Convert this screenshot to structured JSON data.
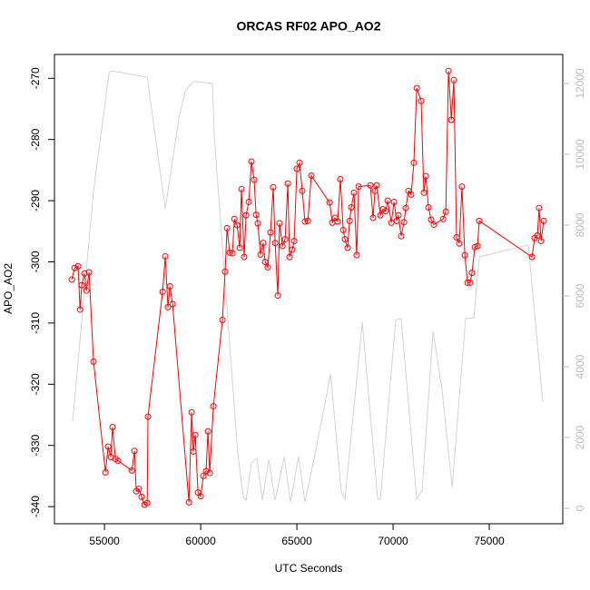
{
  "chart_data": {
    "type": "line",
    "title": "ORCAS RF02 APO_AO2",
    "xlabel": "UTC Seconds",
    "ylabel": "APO_AO2",
    "xlim": [
      52400,
      78820
    ],
    "xticks": [
      55000,
      60000,
      65000,
      70000,
      75000
    ],
    "ylim": [
      -342.8,
      -266.1
    ],
    "yticks": [
      -340,
      -330,
      -320,
      -310,
      -300,
      -290,
      -280,
      -270
    ],
    "y2lim": [
      -436,
      12820
    ],
    "y2ticks": [
      0,
      2000,
      4000,
      6000,
      8000,
      10000,
      12000
    ],
    "series": [
      {
        "color": "#d3d3d3",
        "axis": "y2",
        "markers": false,
        "x": [
          53350,
          54430,
          55240,
          55330,
          57220,
          58160,
          58870,
          59200,
          59620,
          59910,
          60610,
          60710,
          61370,
          61930,
          62220,
          62360,
          62640,
          62920,
          63210,
          63540,
          63870,
          64340,
          64670,
          65090,
          65420,
          65900,
          66750,
          67310,
          67500,
          68400,
          69200,
          69340,
          70140,
          70420,
          71230,
          71510,
          72080,
          72550,
          73070,
          73770,
          74200,
          74480,
          77030,
          77780
        ],
        "values": [
          2460,
          8970,
          12300,
          12360,
          12180,
          8460,
          11030,
          11800,
          12050,
          12050,
          12000,
          10510,
          5640,
          1540,
          310,
          230,
          1280,
          1410,
          230,
          1380,
          230,
          1460,
          180,
          1460,
          180,
          1410,
          3790,
          460,
          260,
          5260,
          260,
          260,
          5330,
          5360,
          260,
          510,
          5000,
          3330,
          590,
          5360,
          5380,
          7100,
          7440,
          3000
        ]
      },
      {
        "color": "#ff0000",
        "axis": "y",
        "markers": true,
        "x": [
          53300,
          53450,
          53630,
          53730,
          53820,
          53960,
          54060,
          54200,
          54430,
          55050,
          55190,
          55330,
          55420,
          55570,
          55710,
          56420,
          56560,
          56650,
          56790,
          56930,
          57080,
          57220,
          57260,
          58020,
          58160,
          58300,
          58400,
          58540,
          59390,
          59530,
          59620,
          59720,
          59860,
          60000,
          60140,
          60280,
          60380,
          60470,
          60660,
          61130,
          61270,
          61370,
          61510,
          61650,
          61750,
          61890,
          62030,
          62120,
          62260,
          62360,
          62500,
          62640,
          62780,
          62880,
          62970,
          63110,
          63250,
          63350,
          63490,
          63630,
          63770,
          63870,
          64010,
          64100,
          64250,
          64390,
          64530,
          64620,
          64760,
          64860,
          65000,
          65140,
          65280,
          65420,
          65570,
          65750,
          66700,
          66840,
          66980,
          67120,
          67260,
          67410,
          67500,
          67640,
          67740,
          67830,
          67970,
          68110,
          68210,
          68820,
          68960,
          69060,
          69150,
          69340,
          69480,
          69620,
          69720,
          69910,
          70050,
          70190,
          70280,
          70420,
          70570,
          70660,
          70800,
          70940,
          71080,
          71230,
          71460,
          71600,
          71700,
          71840,
          71980,
          72120,
          72600,
          72740,
          72880,
          73030,
          73160,
          73300,
          73440,
          73580,
          73730,
          73870,
          74010,
          74100,
          74250,
          74390,
          74480,
          77220,
          77360,
          77500,
          77590,
          77690,
          77830
        ],
        "values": [
          -302.9,
          -301,
          -300.7,
          -307.8,
          -303.8,
          -301.9,
          -304.7,
          -301.7,
          -316.3,
          -334.4,
          -330.2,
          -331.9,
          -327,
          -332.2,
          -332.5,
          -334.1,
          -330.9,
          -337.5,
          -337.1,
          -338.4,
          -339.7,
          -339.4,
          -325.3,
          -304.9,
          -299.1,
          -307.4,
          -304,
          -306.9,
          -339.3,
          -324.6,
          -331,
          -328.3,
          -337.7,
          -338.3,
          -335,
          -334.2,
          -327.7,
          -334.5,
          -323.6,
          -309.5,
          -301.6,
          -294.5,
          -298.5,
          -298.6,
          -293,
          -294,
          -297.7,
          -288.1,
          -299.2,
          -292.4,
          -290.2,
          -283.6,
          -286.6,
          -292.3,
          -293.7,
          -298.8,
          -296.9,
          -300,
          -300.9,
          -295.2,
          -287.8,
          -296.9,
          -305.5,
          -293.7,
          -297.4,
          -296.3,
          -287.2,
          -299.2,
          -298,
          -296.6,
          -284.8,
          -283.8,
          -288.4,
          -293.4,
          -293.3,
          -285.9,
          -290.3,
          -293.6,
          -292.8,
          -293.4,
          -286.5,
          -294.8,
          -296.3,
          -297.7,
          -293.3,
          -291.1,
          -288.7,
          -298.9,
          -287.7,
          -287.5,
          -292.8,
          -288.4,
          -287.5,
          -292.4,
          -291.4,
          -291.7,
          -290,
          -293.6,
          -290.2,
          -293.3,
          -292.4,
          -295.8,
          -293.5,
          -291.2,
          -288.4,
          -289,
          -283.8,
          -271.6,
          -273.7,
          -288.7,
          -286,
          -291.1,
          -293.1,
          -293.9,
          -293,
          -291.8,
          -268.8,
          -276.8,
          -270.3,
          -296,
          -297,
          -287.7,
          -298.9,
          -303.4,
          -303.4,
          -301.8,
          -297.6,
          -297.4,
          -293.3,
          -299.2,
          -296.1,
          -295.7,
          -291.2,
          -296.6,
          -293.3
        ]
      }
    ]
  }
}
